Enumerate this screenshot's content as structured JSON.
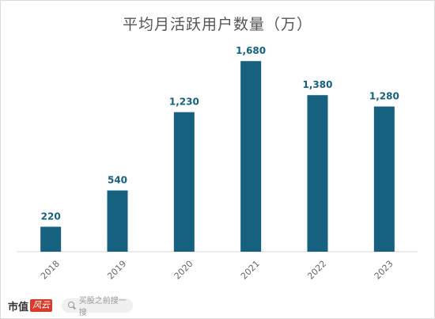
{
  "chart_data": {
    "type": "bar",
    "title": "平均月活跃用户数量（万）",
    "categories": [
      "2018",
      "2019",
      "2020",
      "2021",
      "2022",
      "2023"
    ],
    "values": [
      220,
      540,
      1230,
      1680,
      1380,
      1280
    ],
    "value_labels": [
      "220",
      "540",
      "1,230",
      "1,680",
      "1,380",
      "1,280"
    ],
    "ylim": [
      0,
      1800
    ],
    "grid": false,
    "legend": "none",
    "bar_color": "#16617f",
    "label_color": "#16617f",
    "tick_label_color": "#666666"
  },
  "footer": {
    "logo_text": "市值",
    "logo_badge": "风云",
    "search_placeholder": "买股之前搜一搜",
    "search_icon": "search-icon"
  }
}
